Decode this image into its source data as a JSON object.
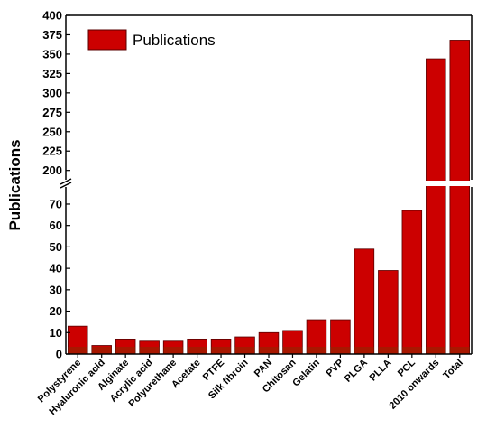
{
  "chart_data": {
    "type": "bar",
    "ylabel": "Publications",
    "xlabel": "",
    "legend": {
      "label": "Publications",
      "placement": "top-left"
    },
    "colors": {
      "bar": "#cc0000",
      "bar_edge": "#5a0000",
      "bar_base": "#8a2a00"
    },
    "categories": [
      "Polystyrene",
      "Hyaluronic acid",
      "Alginate",
      "Acrylic acid",
      "Polyurethane",
      "Acetate",
      "PTFE",
      "Silk fibroin",
      "PAN",
      "Chitosan",
      "Gelatin",
      "PVP",
      "PLGA",
      "PLLA",
      "PCL",
      "2010 onwards",
      "Total"
    ],
    "values": [
      13,
      4,
      7,
      6,
      6,
      7,
      7,
      8,
      10,
      11,
      16,
      16,
      49,
      39,
      67,
      344,
      368
    ],
    "axis_break": true,
    "ylim_lower": [
      0,
      78
    ],
    "ylim_upper": [
      188,
      400
    ],
    "yticks_lower": [
      "0",
      "10",
      "20",
      "30",
      "40",
      "50",
      "60",
      "70"
    ],
    "yticks_upper": [
      "200",
      "225",
      "250",
      "275",
      "300",
      "325",
      "350",
      "375",
      "400"
    ]
  }
}
